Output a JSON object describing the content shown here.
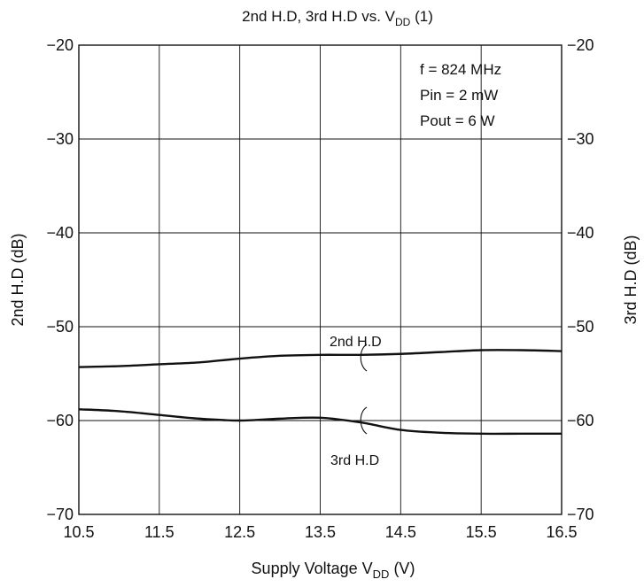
{
  "chart_data": {
    "type": "line",
    "title": "2nd H.D, 3rd H.D vs. V",
    "title_sub": "DD",
    "title_suffix": " (1)",
    "xlabel": "Supply Voltage  V",
    "xlabel_sub": "DD",
    "xlabel_suffix": "  (V)",
    "ylabel_left": "2nd H.D  (dB)",
    "ylabel_right": "3rd H.D  (dB)",
    "xlim": [
      10.5,
      16.5
    ],
    "ylim": [
      -70,
      -20
    ],
    "x_ticks": [
      "10.5",
      "11.5",
      "12.5",
      "13.5",
      "14.5",
      "15.5",
      "16.5"
    ],
    "y_ticks_left": [
      "−20",
      "−30",
      "−40",
      "−50",
      "−60",
      "−70"
    ],
    "y_ticks_right": [
      "−20",
      "−30",
      "−40",
      "−50",
      "−60",
      "−70"
    ],
    "grid": true,
    "conditions": [
      "f = 824 MHz",
      "Pin = 2 mW",
      "Pout = 6 W"
    ],
    "series": [
      {
        "name": "2nd H.D",
        "axis": "left",
        "x": [
          10.5,
          11.0,
          11.5,
          12.0,
          12.5,
          13.0,
          13.5,
          14.0,
          14.5,
          15.0,
          15.5,
          16.0,
          16.5
        ],
        "y": [
          -54.3,
          -54.2,
          -54.0,
          -53.8,
          -53.4,
          -53.1,
          -53.0,
          -53.0,
          -52.9,
          -52.7,
          -52.5,
          -52.5,
          -52.6
        ]
      },
      {
        "name": "3rd H.D",
        "axis": "right",
        "x": [
          10.5,
          11.0,
          11.5,
          12.0,
          12.5,
          13.0,
          13.5,
          14.0,
          14.5,
          15.0,
          15.5,
          16.0,
          16.5
        ],
        "y": [
          -58.8,
          -59.0,
          -59.4,
          -59.8,
          -60.0,
          -59.8,
          -59.7,
          -60.2,
          -61.0,
          -61.3,
          -61.4,
          -61.4,
          -61.4
        ]
      }
    ],
    "colors": {
      "line": "#111111",
      "grid": "#111111",
      "background": "#ffffff"
    }
  }
}
